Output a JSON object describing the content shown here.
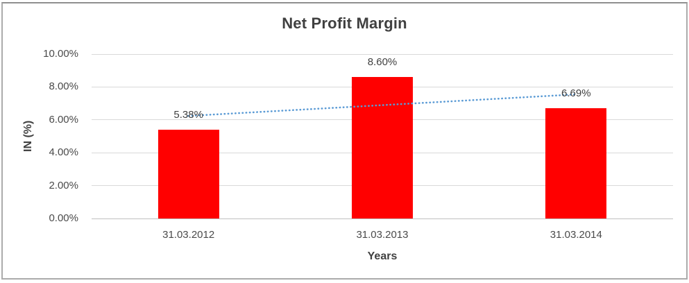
{
  "chart_data": {
    "type": "bar",
    "title": "Net Profit Margin",
    "xlabel": "Years",
    "ylabel": "IN (%)",
    "categories": [
      "31.03.2012",
      "31.03.2013",
      "31.03.2014"
    ],
    "series": [
      {
        "name": "Net Profit Margin",
        "values": [
          5.38,
          8.6,
          6.69
        ],
        "value_labels": [
          "5.38%",
          "8.60%",
          "6.69%"
        ],
        "color": "#ff0000"
      }
    ],
    "ylim": [
      0,
      10
    ],
    "ytick_values": [
      0,
      2,
      4,
      6,
      8,
      10
    ],
    "ytick_labels": [
      "0.00%",
      "2.00%",
      "4.00%",
      "6.00%",
      "8.00%",
      "10.00%"
    ],
    "grid": true,
    "legend": "none",
    "trendline": {
      "type": "linear",
      "style": "dotted",
      "color": "#5b9bd5",
      "start_value": 6.24,
      "end_value": 7.55
    },
    "colors": {
      "bar": "#ff0000",
      "trendline": "#5b9bd5",
      "gridline": "#d9d9d9",
      "axis_line": "#bfbfbf",
      "text": "#404040",
      "frame_border": "#ababab"
    }
  }
}
